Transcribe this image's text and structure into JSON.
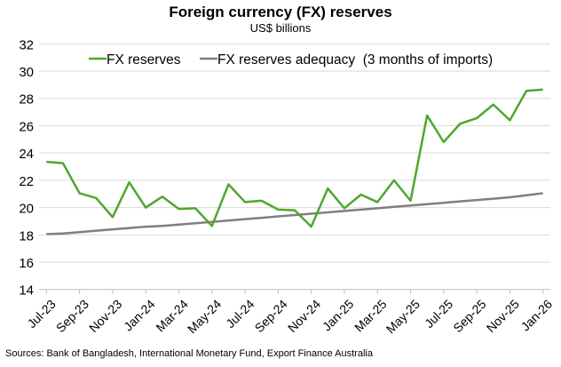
{
  "chart_data": {
    "type": "line",
    "title": "Foreign currency (FX) reserves",
    "subtitle": "US$ billions",
    "source": "Sources: Bank of Bangladesh, International Monetary Fund, Export Finance Australia",
    "x": [
      "Jul-23",
      "Aug-23",
      "Sep-23",
      "Oct-23",
      "Nov-23",
      "Dec-23",
      "Jan-24",
      "Feb-24",
      "Mar-24",
      "Apr-24",
      "May-24",
      "Jun-24",
      "Jul-24",
      "Aug-24",
      "Sep-24",
      "Oct-24",
      "Nov-24",
      "Dec-24",
      "Jan-25",
      "Feb-25",
      "Mar-25",
      "Apr-25",
      "May-25",
      "Jun-25",
      "Jul-25",
      "Aug-25",
      "Sep-25",
      "Oct-25",
      "Nov-25",
      "Dec-25",
      "Jan-26"
    ],
    "tick_labels": [
      "Jul-23",
      "Sep-23",
      "Nov-23",
      "Jan-24",
      "Mar-24",
      "May-24",
      "Jul-24",
      "Sep-24",
      "Nov-24",
      "Jan-25",
      "Mar-25",
      "May-25",
      "Jul-25",
      "Sep-25",
      "Nov-25",
      "Jan-26"
    ],
    "ylim": [
      14,
      32
    ],
    "yticks": [
      14,
      16,
      18,
      20,
      22,
      24,
      26,
      28,
      30,
      32
    ],
    "grid": "horizontal",
    "legend": "top",
    "series": [
      {
        "name": "FX reserves",
        "color": "#4ea72e",
        "values": [
          23.35,
          23.25,
          21.05,
          20.7,
          19.3,
          21.85,
          20.0,
          20.8,
          19.9,
          19.95,
          18.65,
          21.7,
          20.4,
          20.5,
          19.85,
          19.8,
          18.6,
          21.4,
          19.95,
          20.95,
          20.4,
          22.0,
          20.5,
          26.75,
          24.8,
          26.15,
          26.55,
          27.55,
          26.4,
          28.55,
          28.65
        ]
      },
      {
        "name": "FX reserves adequacy  (3 months of imports)",
        "color": "#7f7f7f",
        "values": [
          18.05,
          18.1,
          18.2,
          18.3,
          18.4,
          18.5,
          18.6,
          18.65,
          18.75,
          18.85,
          18.95,
          19.05,
          19.15,
          19.25,
          19.35,
          19.45,
          19.55,
          19.65,
          19.75,
          19.85,
          19.95,
          20.05,
          20.15,
          20.25,
          20.35,
          20.45,
          20.55,
          20.65,
          20.75,
          20.9,
          21.05
        ]
      }
    ]
  }
}
